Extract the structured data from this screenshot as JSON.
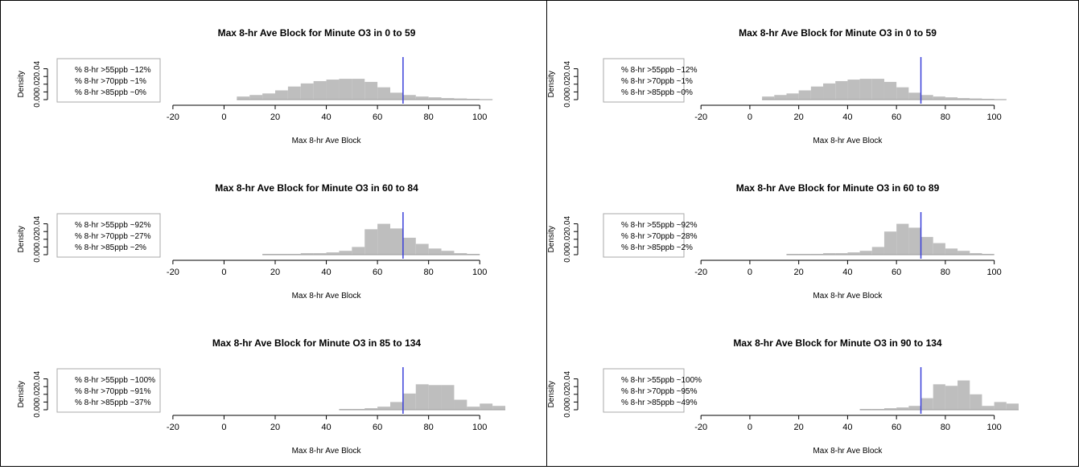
{
  "chart_data": [
    {
      "panel": "left",
      "subplots": [
        {
          "type": "bar",
          "title": "Max 8-hr Ave Block for Minute O3 in 0 to 59",
          "xlabel": "Max 8-hr Ave Block",
          "ylabel": "Density",
          "xticks": [
            "-20",
            "0",
            "20",
            "40",
            "60",
            "80",
            "100"
          ],
          "yticks": [
            "0.00",
            "0.02",
            "0.04"
          ],
          "legend": [
            "% 8-hr >55ppb ~12%",
            "% 8-hr >70ppb ~1%",
            "% 8-hr >85ppb ~0%"
          ],
          "bin_edges": [
            5,
            10,
            15,
            20,
            25,
            30,
            35,
            40,
            45,
            50,
            55,
            60,
            65,
            70,
            75,
            80,
            85,
            90,
            95,
            100,
            105
          ],
          "values": [
            0.004,
            0.006,
            0.008,
            0.012,
            0.017,
            0.021,
            0.024,
            0.026,
            0.027,
            0.027,
            0.023,
            0.016,
            0.009,
            0.006,
            0.004,
            0.003,
            0.002,
            0.0015,
            0.001,
            0.0005
          ],
          "vline": 70,
          "xlim": [
            -25,
            110
          ],
          "ylim": [
            0,
            0.05
          ]
        },
        {
          "type": "bar",
          "title": "Max 8-hr Ave Block for Minute O3 in 60 to 84",
          "xlabel": "Max 8-hr Ave Block",
          "ylabel": "Density",
          "xticks": [
            "-20",
            "0",
            "20",
            "40",
            "60",
            "80",
            "100"
          ],
          "yticks": [
            "0.00",
            "0.02",
            "0.04"
          ],
          "legend": [
            "% 8-hr >55ppb ~92%",
            "% 8-hr >70ppb ~27%",
            "% 8-hr >85ppb ~2%"
          ],
          "bin_edges": [
            15,
            20,
            25,
            30,
            35,
            40,
            45,
            50,
            55,
            60,
            65,
            70,
            75,
            80,
            85,
            90,
            95,
            100
          ],
          "values": [
            0.001,
            0.001,
            0.001,
            0.002,
            0.002,
            0.003,
            0.005,
            0.01,
            0.033,
            0.04,
            0.034,
            0.022,
            0.014,
            0.008,
            0.005,
            0.002,
            0.001
          ],
          "vline": 70,
          "xlim": [
            -25,
            110
          ],
          "ylim": [
            0,
            0.05
          ]
        },
        {
          "type": "bar",
          "title": "Max 8-hr Ave Block for Minute O3 in 85 to 134",
          "xlabel": "Max 8-hr Ave Block",
          "ylabel": "Density",
          "xticks": [
            "-20",
            "0",
            "20",
            "40",
            "60",
            "80",
            "100"
          ],
          "yticks": [
            "0.00",
            "0.02",
            "0.04"
          ],
          "legend": [
            "% 8-hr >55ppb ~100%",
            "% 8-hr >70ppb ~91%",
            "% 8-hr >85ppb ~37%"
          ],
          "bin_edges": [
            45,
            50,
            55,
            60,
            65,
            70,
            75,
            80,
            85,
            90,
            95,
            100,
            105,
            110
          ],
          "values": [
            0.001,
            0.001,
            0.002,
            0.004,
            0.01,
            0.021,
            0.033,
            0.032,
            0.032,
            0.013,
            0.004,
            0.008,
            0.005
          ],
          "vline": 70,
          "xlim": [
            -25,
            110
          ],
          "ylim": [
            0,
            0.05
          ]
        }
      ]
    },
    {
      "panel": "right",
      "subplots": [
        {
          "type": "bar",
          "title": "Max 8-hr Ave Block for Minute O3 in 0 to 59",
          "xlabel": "Max 8-hr Ave Block",
          "ylabel": "Density",
          "xticks": [
            "-20",
            "0",
            "20",
            "40",
            "60",
            "80",
            "100"
          ],
          "yticks": [
            "0.00",
            "0.02",
            "0.04"
          ],
          "legend": [
            "% 8-hr >55ppb ~12%",
            "% 8-hr >70ppb ~1%",
            "% 8-hr >85ppb ~0%"
          ],
          "bin_edges": [
            5,
            10,
            15,
            20,
            25,
            30,
            35,
            40,
            45,
            50,
            55,
            60,
            65,
            70,
            75,
            80,
            85,
            90,
            95,
            100,
            105
          ],
          "values": [
            0.004,
            0.006,
            0.008,
            0.012,
            0.017,
            0.021,
            0.024,
            0.026,
            0.027,
            0.027,
            0.023,
            0.016,
            0.009,
            0.006,
            0.004,
            0.003,
            0.002,
            0.0015,
            0.001,
            0.0005
          ],
          "vline": 70,
          "xlim": [
            -25,
            110
          ],
          "ylim": [
            0,
            0.05
          ]
        },
        {
          "type": "bar",
          "title": "Max 8-hr Ave Block for Minute O3 in 60 to 89",
          "xlabel": "Max 8-hr Ave Block",
          "ylabel": "Density",
          "xticks": [
            "-20",
            "0",
            "20",
            "40",
            "60",
            "80",
            "100"
          ],
          "yticks": [
            "0.00",
            "0.02",
            "0.04"
          ],
          "legend": [
            "% 8-hr >55ppb ~92%",
            "% 8-hr >70ppb ~28%",
            "% 8-hr >85ppb ~2%"
          ],
          "bin_edges": [
            15,
            20,
            25,
            30,
            35,
            40,
            45,
            50,
            55,
            60,
            65,
            70,
            75,
            80,
            85,
            90,
            95,
            100
          ],
          "values": [
            0.001,
            0.001,
            0.001,
            0.002,
            0.002,
            0.003,
            0.005,
            0.01,
            0.03,
            0.04,
            0.035,
            0.023,
            0.015,
            0.008,
            0.005,
            0.002,
            0.001
          ],
          "vline": 70,
          "xlim": [
            -25,
            110
          ],
          "ylim": [
            0,
            0.05
          ]
        },
        {
          "type": "bar",
          "title": "Max 8-hr Ave Block for Minute O3 in 90 to 134",
          "xlabel": "Max 8-hr Ave Block",
          "ylabel": "Density",
          "xticks": [
            "-20",
            "0",
            "20",
            "40",
            "60",
            "80",
            "100"
          ],
          "yticks": [
            "0.00",
            "0.02",
            "0.04"
          ],
          "legend": [
            "% 8-hr >55ppb ~100%",
            "% 8-hr >70ppb ~95%",
            "% 8-hr >85ppb ~49%"
          ],
          "bin_edges": [
            45,
            50,
            55,
            60,
            65,
            70,
            75,
            80,
            85,
            90,
            95,
            100,
            105,
            110
          ],
          "values": [
            0.001,
            0.001,
            0.002,
            0.003,
            0.005,
            0.015,
            0.033,
            0.031,
            0.038,
            0.02,
            0.005,
            0.01,
            0.008
          ],
          "vline": 70,
          "xlim": [
            -25,
            110
          ],
          "ylim": [
            0,
            0.05
          ]
        }
      ]
    }
  ],
  "colors": {
    "bar": "#bebebe",
    "vline": "#3a3fd9",
    "axis": "#000000",
    "text": "#000000"
  }
}
